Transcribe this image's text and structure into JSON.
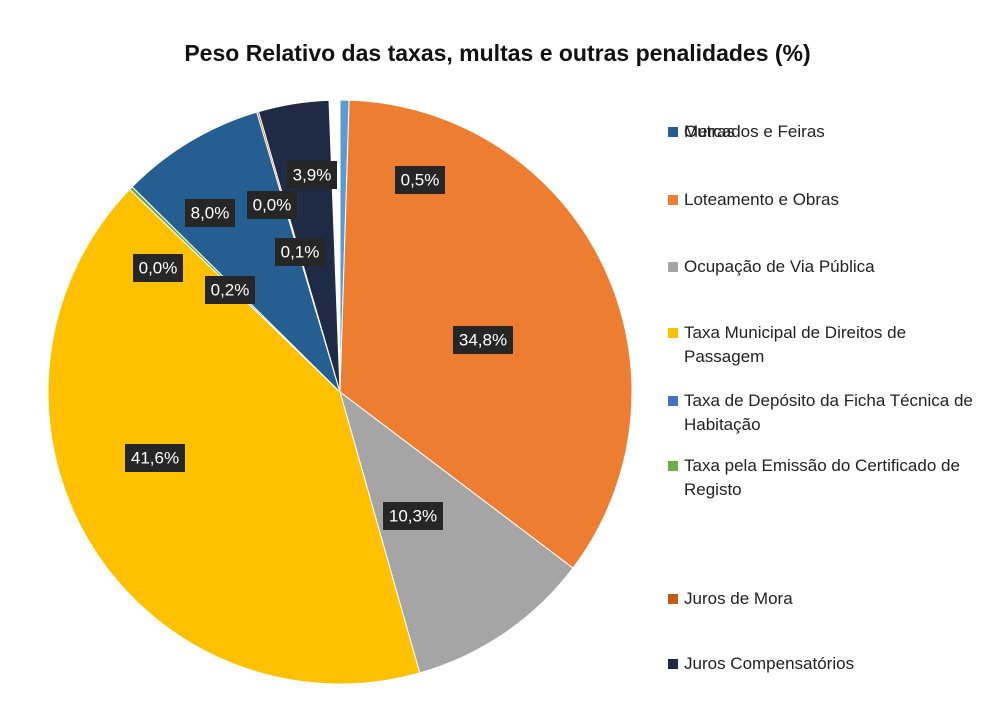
{
  "chart_data": {
    "type": "pie",
    "title": "Peso Relativo das taxas, multas e outras penalidades (%)",
    "categories": [
      "Mercados e Feiras",
      "Loteamento e Obras",
      "Ocupação de Via Pública",
      "Taxa Municipal de Direitos de Passagem",
      "Taxa de Depósito da Ficha Técnica de Habitação",
      "Taxa pela Emissão do Certificado de Registo",
      "Outras",
      null,
      "Juros de Mora",
      "Juros Compensatórios"
    ],
    "values": [
      0.5,
      34.8,
      10.3,
      41.6,
      0.0,
      0.2,
      8.0,
      0.0,
      0.1,
      3.9
    ],
    "value_labels": [
      "0,5%",
      "34,8%",
      "10,3%",
      "41,6%",
      "0,0%",
      "0,2%",
      "8,0%",
      "0,0%",
      "0,1%",
      "3,9%"
    ],
    "colors": [
      "#5b9bd5",
      "#ed7d31",
      "#a5a5a5",
      "#ffc000",
      "#4472c4",
      "#70ad47",
      "#255e91",
      "#264478",
      "#c55a11",
      "#1f2a44"
    ],
    "legend": "right"
  }
}
